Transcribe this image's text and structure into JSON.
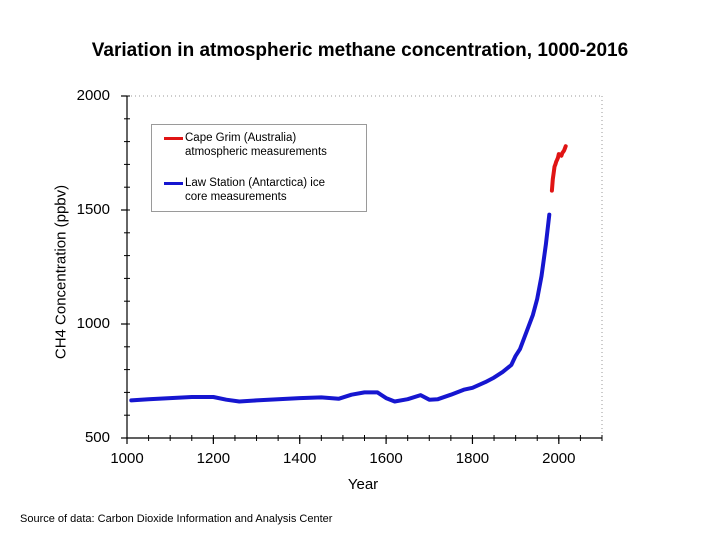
{
  "colors": {
    "cape_grim": "#e01414",
    "law_station": "#1616d0",
    "axis": "#000000"
  },
  "chart_data": {
    "type": "line",
    "title": "Variation in atmospheric methane concentration, 1000-2016",
    "xlabel": "Year",
    "ylabel": "CH4 Concentration (ppbv)",
    "xlim": [
      1000,
      2100
    ],
    "ylim": [
      500,
      2000
    ],
    "x_ticks": [
      1000,
      1200,
      1400,
      1600,
      1800,
      2000
    ],
    "x_tick_labels": [
      "1000",
      "1200",
      "1400",
      "1600",
      "1800",
      "2000"
    ],
    "y_ticks": [
      500,
      1000,
      1500,
      2000
    ],
    "y_tick_labels": [
      "500",
      "1000",
      "1500",
      "2000"
    ],
    "legend_position": "top-left",
    "series": [
      {
        "name": "Cape Grim (Australia) atmospheric measurements",
        "color": "#e01414",
        "x": [
          1984,
          1986,
          1988,
          1990,
          1992,
          1994,
          1996,
          1998,
          2000,
          2002,
          2004,
          2006,
          2008,
          2010,
          2012,
          2014,
          2016
        ],
        "y": [
          1585,
          1635,
          1660,
          1690,
          1700,
          1712,
          1720,
          1730,
          1745,
          1740,
          1742,
          1738,
          1750,
          1755,
          1760,
          1770,
          1780
        ]
      },
      {
        "name": "Law Station (Antarctica) ice core measurements",
        "color": "#1616d0",
        "x": [
          1010,
          1050,
          1100,
          1150,
          1200,
          1230,
          1260,
          1300,
          1350,
          1400,
          1450,
          1490,
          1520,
          1550,
          1580,
          1600,
          1620,
          1650,
          1680,
          1700,
          1720,
          1750,
          1780,
          1800,
          1830,
          1850,
          1870,
          1890,
          1900,
          1910,
          1920,
          1930,
          1940,
          1950,
          1960,
          1965,
          1970,
          1975,
          1978
        ],
        "y": [
          665,
          670,
          675,
          680,
          680,
          668,
          660,
          665,
          670,
          675,
          678,
          672,
          690,
          700,
          700,
          675,
          660,
          670,
          688,
          668,
          670,
          690,
          712,
          720,
          745,
          765,
          790,
          820,
          860,
          890,
          940,
          990,
          1040,
          1110,
          1210,
          1280,
          1350,
          1430,
          1480
        ]
      }
    ]
  },
  "legend": {
    "items": [
      {
        "label_line1": "Cape Grim (Australia)",
        "label_line2": "atmospheric measurements"
      },
      {
        "label_line1": "Law Station (Antarctica) ice",
        "label_line2": "core measurements"
      }
    ]
  },
  "source": "Source of data: Carbon Dioxide Information and Analysis Center"
}
